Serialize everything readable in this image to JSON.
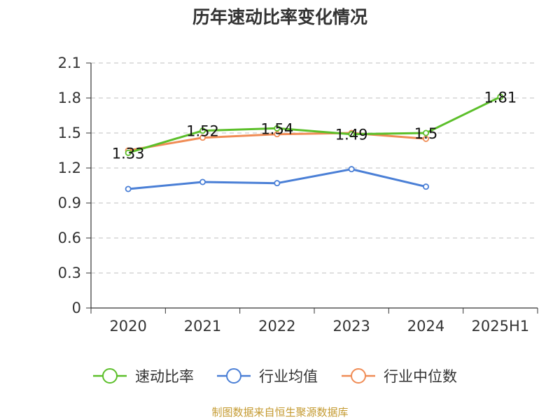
{
  "title": "历年速动比率变化情况",
  "source": "制图数据来自恒生聚源数据库",
  "chart_data": {
    "type": "line",
    "title": "历年速动比率变化情况",
    "xlabel": "",
    "ylabel": "",
    "categories": [
      "2020",
      "2021",
      "2022",
      "2023",
      "2024",
      "2025H1"
    ],
    "ylim": [
      0,
      2.1
    ],
    "yticks": [
      "0",
      "0.3",
      "0.6",
      "0.9",
      "1.2",
      "1.5",
      "1.8",
      "2.1"
    ],
    "grid": true,
    "legend_position": "bottom",
    "series": [
      {
        "name": "速动比率",
        "color": "#5cbf2a",
        "values": [
          1.33,
          1.52,
          1.54,
          1.49,
          1.5,
          1.81
        ],
        "data_labels": [
          "1.33",
          "1.52",
          "1.54",
          "1.49",
          "1.5",
          "1.81"
        ]
      },
      {
        "name": "行业均值",
        "color": "#4a7fd6",
        "values": [
          1.02,
          1.08,
          1.07,
          1.19,
          1.04,
          null
        ]
      },
      {
        "name": "行业中位数",
        "color": "#f08c55",
        "values": [
          1.35,
          1.46,
          1.49,
          1.5,
          1.45,
          null
        ]
      }
    ]
  }
}
